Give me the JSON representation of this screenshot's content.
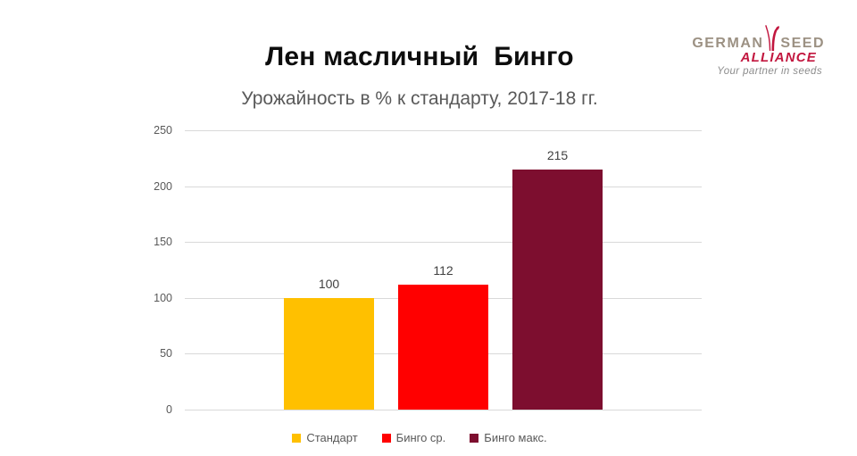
{
  "slide": {
    "title": "Лен масличный  Бинго",
    "subtitle": "Урожайность в % к стандарту, 2017-18 гг."
  },
  "logo": {
    "word1": "GERMAN",
    "word2": "SEED",
    "word3": "ALLIANCE",
    "tagline": "Your partner in seeds",
    "colors": {
      "words": "#9c9183",
      "alliance": "#c2173f",
      "tagline": "#8c8c8c",
      "sprout": "#c2173f"
    }
  },
  "chart_data": {
    "type": "bar",
    "title": "Лен масличный Бинго",
    "subtitle": "Урожайность в % к стандарту, 2017-18 гг.",
    "categories": [
      ""
    ],
    "series": [
      {
        "name": "Стандарт",
        "values": [
          100
        ],
        "color": "#ffc000"
      },
      {
        "name": "Бинго ср.",
        "values": [
          112
        ],
        "color": "#ff0000"
      },
      {
        "name": "Бинго макс.",
        "values": [
          215
        ],
        "color": "#7d0e2f"
      }
    ],
    "data_labels": [
      100,
      112,
      215
    ],
    "ylabel": "",
    "xlabel": "",
    "ylim": [
      0,
      250
    ],
    "yticks": [
      0,
      50,
      100,
      150,
      200,
      250
    ],
    "grid": true,
    "gridline_color": "#d9d9d9",
    "legend_position": "bottom"
  }
}
